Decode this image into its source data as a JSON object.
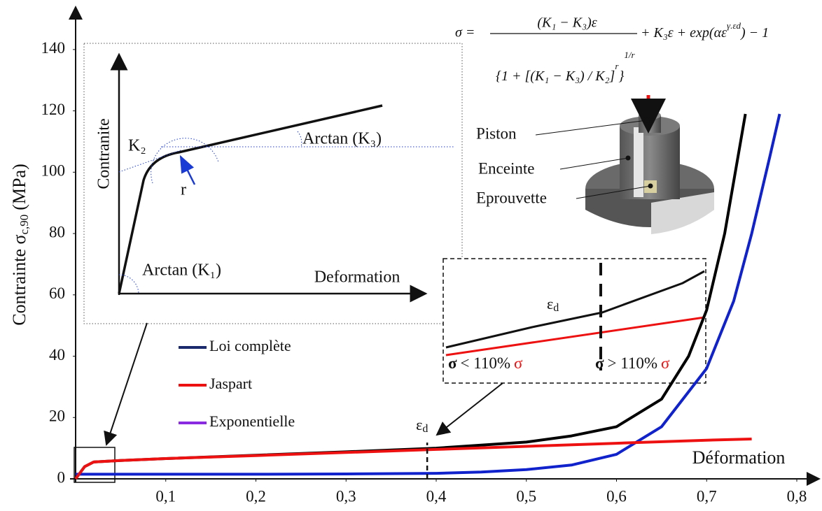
{
  "chart_data": {
    "type": "line",
    "x_label": "Déformation",
    "y_label": {
      "main": "Contrainte σ",
      "sub": "c,90",
      "unit": "(MPa)"
    },
    "xlim": [
      0,
      0.8
    ],
    "ylim": [
      0,
      150
    ],
    "xticks": [
      {
        "value": 0.1,
        "label": "0,1"
      },
      {
        "value": 0.2,
        "label": "0,2"
      },
      {
        "value": 0.3,
        "label": "0,3"
      },
      {
        "value": 0.4,
        "label": "0,4"
      },
      {
        "value": 0.5,
        "label": "0,5"
      },
      {
        "value": 0.6,
        "label": "0,6"
      },
      {
        "value": 0.7,
        "label": "0,7"
      },
      {
        "value": 0.8,
        "label": "0,8"
      }
    ],
    "yticks": [
      0,
      20,
      40,
      60,
      80,
      100,
      120,
      140
    ],
    "grid": false,
    "series": [
      {
        "name": "Loi complète",
        "color": "#000000",
        "legend_color": "#1a2a6c",
        "x": [
          0,
          0.01,
          0.02,
          0.05,
          0.1,
          0.2,
          0.3,
          0.4,
          0.5,
          0.55,
          0.6,
          0.65,
          0.68,
          0.7,
          0.72,
          0.743
        ],
        "values": [
          0,
          4,
          5.5,
          6,
          6.6,
          7.7,
          8.8,
          10,
          12,
          14,
          17,
          26,
          40,
          55,
          80,
          119
        ]
      },
      {
        "name": "Jaspart",
        "color": "#ee1111",
        "legend_color": "#ee1111",
        "x": [
          0,
          0.01,
          0.02,
          0.05,
          0.1,
          0.2,
          0.3,
          0.4,
          0.5,
          0.6,
          0.7,
          0.75
        ],
        "values": [
          0,
          4,
          5.5,
          6,
          6.6,
          7.6,
          8.6,
          9.6,
          10.6,
          11.6,
          12.6,
          13
        ]
      },
      {
        "name": "Exponentielle",
        "color": "#1022cc",
        "legend_color": "#8a2be2",
        "x": [
          0,
          0.1,
          0.2,
          0.3,
          0.4,
          0.45,
          0.5,
          0.55,
          0.6,
          0.65,
          0.7,
          0.73,
          0.75,
          0.77,
          0.781
        ],
        "values": [
          1.5,
          1.5,
          1.5,
          1.6,
          1.8,
          2.2,
          3,
          4.5,
          8,
          17,
          36,
          58,
          80,
          105,
          119
        ]
      }
    ],
    "annotation": {
      "symbol": "ε",
      "subscript": "d",
      "x": 0.39,
      "y": 10
    }
  },
  "inset": {
    "y_label": "Contranite",
    "x_label": "Deformation",
    "k2": "K₂",
    "r": "r",
    "arctan_k3": "Arctan (K₃)",
    "arctan_k1": "Arctan (K₁)"
  },
  "zoom": {
    "symbol": "ε",
    "subscript": "d",
    "left": {
      "sigma": "σ",
      "text": "< 110%",
      "sigma_red": "σ"
    },
    "right": {
      "sigma": "σ",
      "text": "> 110%",
      "sigma_red": "σ"
    }
  },
  "formula": {
    "lhs": "σ =",
    "numerator": "(K₁ − K₃)ε",
    "tail": "+ K₃ε + exp(αε",
    "exponent": "γ.εd",
    "tail_end": ") − 1",
    "denominator": "{1 + [(K₁ − K₃) / K₂]",
    "denominator_power": "r",
    "denominator_end": "}",
    "outer_power": "1/r"
  },
  "apparatus": {
    "piston": "Piston",
    "enceinte": "Enceinte",
    "eprouvette": "Eprouvette"
  }
}
